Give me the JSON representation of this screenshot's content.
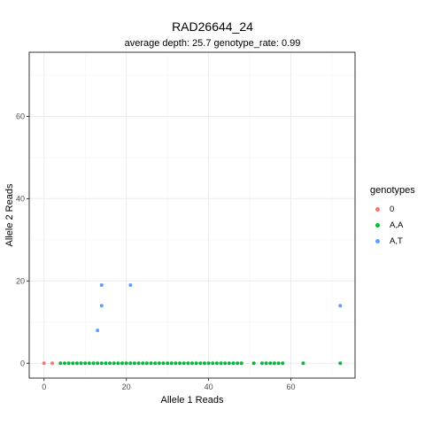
{
  "chart_data": {
    "type": "scatter",
    "title": "RAD26644_24",
    "subtitle": "average depth:  25.7  genotype_rate:  0.99",
    "xlabel": "Allele 1 Reads",
    "ylabel": "Allele 2 Reads",
    "xlim": [
      -3.6,
      75.6
    ],
    "ylim": [
      -3.6,
      75.6
    ],
    "xticks": [
      0,
      20,
      40,
      60
    ],
    "yticks": [
      0,
      20,
      40,
      60
    ],
    "grid": true,
    "legend_title": "genotypes",
    "legend_position": "right",
    "series": [
      {
        "name": "0",
        "color": "#F8766D",
        "points": [
          [
            0,
            0
          ],
          [
            2,
            0
          ]
        ]
      },
      {
        "name": "A,A",
        "color": "#00BA38",
        "points": [
          [
            4,
            0
          ],
          [
            5,
            0
          ],
          [
            6,
            0
          ],
          [
            7,
            0
          ],
          [
            8,
            0
          ],
          [
            9,
            0
          ],
          [
            10,
            0
          ],
          [
            11,
            0
          ],
          [
            12,
            0
          ],
          [
            13,
            0
          ],
          [
            14,
            0
          ],
          [
            15,
            0
          ],
          [
            16,
            0
          ],
          [
            17,
            0
          ],
          [
            18,
            0
          ],
          [
            19,
            0
          ],
          [
            20,
            0
          ],
          [
            21,
            0
          ],
          [
            22,
            0
          ],
          [
            23,
            0
          ],
          [
            24,
            0
          ],
          [
            25,
            0
          ],
          [
            26,
            0
          ],
          [
            27,
            0
          ],
          [
            28,
            0
          ],
          [
            29,
            0
          ],
          [
            30,
            0
          ],
          [
            31,
            0
          ],
          [
            32,
            0
          ],
          [
            33,
            0
          ],
          [
            34,
            0
          ],
          [
            35,
            0
          ],
          [
            36,
            0
          ],
          [
            37,
            0
          ],
          [
            38,
            0
          ],
          [
            39,
            0
          ],
          [
            40,
            0
          ],
          [
            41,
            0
          ],
          [
            42,
            0
          ],
          [
            43,
            0
          ],
          [
            44,
            0
          ],
          [
            45,
            0
          ],
          [
            46,
            0
          ],
          [
            47,
            0
          ],
          [
            48,
            0
          ],
          [
            51,
            0
          ],
          [
            53,
            0
          ],
          [
            54,
            0
          ],
          [
            55,
            0
          ],
          [
            56,
            0
          ],
          [
            57,
            0
          ],
          [
            58,
            0
          ],
          [
            63,
            0
          ],
          [
            72,
            0
          ]
        ]
      },
      {
        "name": "A,T",
        "color": "#619CFF",
        "points": [
          [
            13,
            8
          ],
          [
            14,
            14
          ],
          [
            14,
            19
          ],
          [
            21,
            19
          ],
          [
            72,
            14
          ]
        ]
      }
    ]
  }
}
